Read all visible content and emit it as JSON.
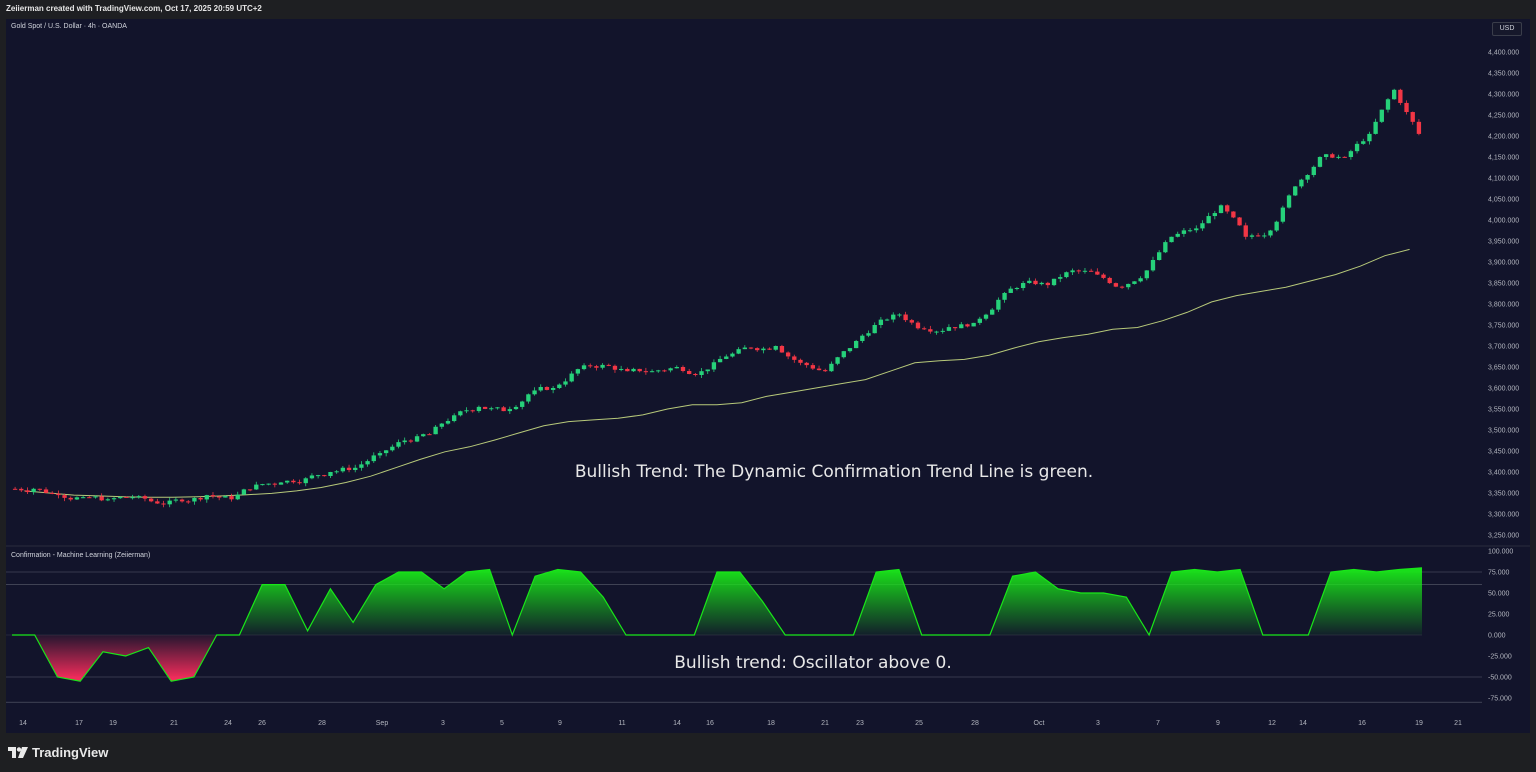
{
  "header": {
    "credit": "Zeiierman created with TradingView.com, Oct 17, 2025 20:59 UTC+2"
  },
  "main_chart": {
    "symbol": "Gold Spot / U.S. Dollar · 4h · OANDA",
    "currency": "USD",
    "annotation": "Bullish Trend: The Dynamic Confirmation Trend Line is green.",
    "price_ticks": [
      "4,400.000",
      "4,350.000",
      "4,300.000",
      "4,250.000",
      "4,200.000",
      "4,150.000",
      "4,100.000",
      "4,050.000",
      "4,000.000",
      "3,950.000",
      "3,900.000",
      "3,850.000",
      "3,800.000",
      "3,750.000",
      "3,700.000",
      "3,650.000",
      "3,600.000",
      "3,550.000",
      "3,500.000",
      "3,450.000",
      "3,400.000",
      "3,350.000",
      "3,300.000",
      "3,250.000"
    ]
  },
  "indicator": {
    "title": "Confirmation - Machine Learning (Zeiierman)",
    "annotation": "Bullish trend: Oscillator above 0.",
    "ticks": [
      "100.000",
      "75.000",
      "50.000",
      "25.000",
      "0.000",
      "-25.000",
      "-50.000",
      "-75.000"
    ]
  },
  "time_axis": [
    "14",
    "17",
    "19",
    "21",
    "24",
    "26",
    "28",
    "Sep",
    "3",
    "5",
    "9",
    "11",
    "14",
    "16",
    "18",
    "21",
    "23",
    "25",
    "28",
    "Oct",
    "3",
    "7",
    "9",
    "12",
    "14",
    "16",
    "19",
    "21"
  ],
  "footer": {
    "brand": "TradingView"
  },
  "colors": {
    "bull": "#26d17a",
    "bear": "#f23645",
    "trendline": "#b7c97a",
    "osc_green": "#19e619",
    "osc_red": "#ff2d5e",
    "background": "#12142b"
  },
  "chart_data": [
    {
      "type": "candlestick",
      "title": "Gold Spot / U.S. Dollar · 4h · OANDA",
      "ylim": [
        3225,
        4425
      ],
      "x": [
        "Aug 13",
        "Aug 14",
        "Aug 15",
        "Aug 17",
        "Aug 18",
        "Aug 19",
        "Aug 20",
        "Aug 21",
        "Aug 22",
        "Aug 24",
        "Aug 25",
        "Aug 26",
        "Aug 27",
        "Aug 28",
        "Aug 29",
        "Aug 31",
        "Sep 1",
        "Sep 2",
        "Sep 3",
        "Sep 4",
        "Sep 5",
        "Sep 7",
        "Sep 8",
        "Sep 9",
        "Sep 10",
        "Sep 11",
        "Sep 12",
        "Sep 14",
        "Sep 15",
        "Sep 16",
        "Sep 17",
        "Sep 18",
        "Sep 19",
        "Sep 21",
        "Sep 22",
        "Sep 23",
        "Sep 24",
        "Sep 25",
        "Sep 26",
        "Sep 28",
        "Sep 29",
        "Sep 30",
        "Oct 1",
        "Oct 2",
        "Oct 3",
        "Oct 5",
        "Oct 6",
        "Oct 7",
        "Oct 8",
        "Oct 9",
        "Oct 10",
        "Oct 12",
        "Oct 13",
        "Oct 14",
        "Oct 15",
        "Oct 16",
        "Oct 17"
      ],
      "close": [
        3360,
        3345,
        3340,
        3335,
        3340,
        3325,
        3330,
        3345,
        3335,
        3370,
        3375,
        3385,
        3400,
        3410,
        3445,
        3475,
        3490,
        3535,
        3555,
        3545,
        3585,
        3600,
        3645,
        3655,
        3640,
        3640,
        3650,
        3640,
        3675,
        3695,
        3700,
        3660,
        3640,
        3695,
        3750,
        3775,
        3740,
        3745,
        3755,
        3810,
        3850,
        3845,
        3880,
        3870,
        3840,
        3880,
        3960,
        3980,
        4035,
        3960,
        3975,
        4080,
        4150,
        4150,
        4205,
        4310,
        4205
      ],
      "series": [
        {
          "name": "",
          "values": [
            3355,
            3350,
            3345,
            3343,
            3341,
            3340,
            3340,
            3341,
            3343,
            3346,
            3349,
            3355,
            3363,
            3375,
            3390,
            3410,
            3430,
            3448,
            3460,
            3476,
            3493,
            3510,
            3520,
            3524,
            3528,
            3536,
            3550,
            3560,
            3560,
            3565,
            3580,
            3590,
            3600,
            3610,
            3620,
            3640,
            3660,
            3665,
            3668,
            3678,
            3695,
            3710,
            3720,
            3728,
            3740,
            3744,
            3760,
            3780,
            3805,
            3820,
            3830,
            3840,
            3855,
            3870,
            3890,
            3915,
            3930
          ]
        }
      ]
    },
    {
      "type": "area",
      "title": "Confirmation - Machine Learning (Zeiierman)",
      "ylim": [
        -100,
        100
      ],
      "x": [
        "Aug 13",
        "Aug 15",
        "Aug 16",
        "Aug 17",
        "Aug 18",
        "Aug 19",
        "Aug 20",
        "Aug 21",
        "Aug 22",
        "Aug 23",
        "Aug 24",
        "Aug 25",
        "Aug 26",
        "Aug 27",
        "Aug 28",
        "Aug 29",
        "Aug 31",
        "Sep 1",
        "Sep 2",
        "Sep 3",
        "Sep 4",
        "Sep 5",
        "Sep 6",
        "Sep 7",
        "Sep 8",
        "Sep 9",
        "Sep 10",
        "Sep 11",
        "Sep 12",
        "Sep 14",
        "Sep 15",
        "Sep 16",
        "Sep 17",
        "Sep 18",
        "Sep 19",
        "Sep 20",
        "Sep 21",
        "Sep 22",
        "Sep 23",
        "Sep 24",
        "Sep 25",
        "Sep 26",
        "Sep 27",
        "Sep 28",
        "Sep 29",
        "Sep 30",
        "Oct 1",
        "Oct 2",
        "Oct 3",
        "Oct 4",
        "Oct 5",
        "Oct 6",
        "Oct 7",
        "Oct 8",
        "Oct 9",
        "Oct 10",
        "Oct 11",
        "Oct 12",
        "Oct 13",
        "Oct 14",
        "Oct 15",
        "Oct 16",
        "Oct 17"
      ],
      "values": [
        0,
        0,
        -50,
        -55,
        -20,
        -25,
        -15,
        -55,
        -50,
        0,
        0,
        60,
        60,
        5,
        55,
        15,
        60,
        75,
        75,
        55,
        75,
        78,
        0,
        70,
        78,
        75,
        45,
        0,
        0,
        0,
        0,
        75,
        75,
        40,
        0,
        0,
        0,
        0,
        75,
        78,
        0,
        0,
        0,
        0,
        70,
        75,
        55,
        50,
        50,
        45,
        0,
        75,
        78,
        75,
        78,
        0,
        0,
        0,
        75,
        78,
        75,
        78,
        80
      ]
    }
  ]
}
